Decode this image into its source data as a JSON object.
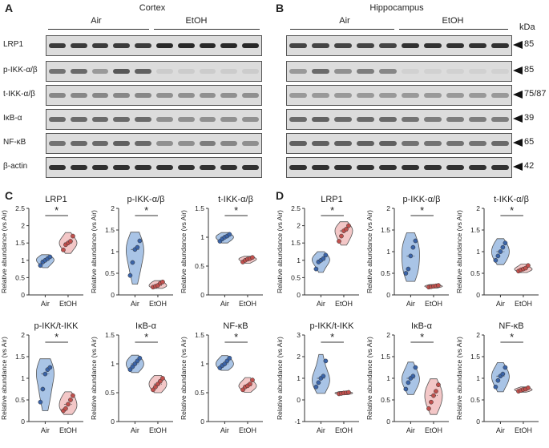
{
  "panels": {
    "A": {
      "letter": "A",
      "title": "Cortex",
      "groups": [
        "Air",
        "EtOH"
      ]
    },
    "B": {
      "letter": "B",
      "title": "Hippocampus",
      "groups": [
        "Air",
        "EtOH"
      ],
      "unit": "kDa"
    },
    "C": {
      "letter": "C"
    },
    "D": {
      "letter": "D"
    }
  },
  "blot_rows": [
    {
      "label": "LRP1",
      "kda": "85"
    },
    {
      "label": "p-IKK-α/β",
      "kda": "85"
    },
    {
      "label": "t-IKK-α/β",
      "kda": "75/87"
    },
    {
      "label": "IκB-α",
      "kda": "39"
    },
    {
      "label": "NF-κB",
      "kda": "65"
    },
    {
      "label": "β-actin",
      "kda": "42"
    }
  ],
  "band_intensity": {
    "cortex": [
      [
        0.85,
        0.85,
        0.85,
        0.85,
        0.85,
        0.95,
        0.95,
        0.95,
        0.95,
        0.95
      ],
      [
        0.55,
        0.6,
        0.35,
        0.7,
        0.65,
        0.08,
        0.08,
        0.08,
        0.08,
        0.08
      ],
      [
        0.45,
        0.45,
        0.45,
        0.45,
        0.45,
        0.4,
        0.4,
        0.4,
        0.4,
        0.4
      ],
      [
        0.6,
        0.6,
        0.6,
        0.6,
        0.6,
        0.4,
        0.4,
        0.4,
        0.4,
        0.4
      ],
      [
        0.55,
        0.6,
        0.6,
        0.65,
        0.6,
        0.4,
        0.4,
        0.5,
        0.45,
        0.4
      ],
      [
        0.9,
        0.9,
        0.9,
        0.9,
        0.9,
        0.9,
        0.9,
        0.9,
        0.9,
        0.9
      ]
    ],
    "hippocampus": [
      [
        0.8,
        0.8,
        0.8,
        0.8,
        0.8,
        0.9,
        0.9,
        0.9,
        0.9,
        0.9
      ],
      [
        0.35,
        0.6,
        0.4,
        0.5,
        0.45,
        0.06,
        0.06,
        0.06,
        0.06,
        0.06
      ],
      [
        0.35,
        0.35,
        0.35,
        0.35,
        0.35,
        0.35,
        0.35,
        0.35,
        0.35,
        0.35
      ],
      [
        0.6,
        0.65,
        0.6,
        0.6,
        0.6,
        0.55,
        0.5,
        0.5,
        0.5,
        0.5
      ],
      [
        0.65,
        0.65,
        0.65,
        0.65,
        0.65,
        0.55,
        0.55,
        0.55,
        0.55,
        0.6
      ],
      [
        0.9,
        0.9,
        0.9,
        0.9,
        0.9,
        0.9,
        0.9,
        0.9,
        0.9,
        0.9
      ]
    ]
  },
  "colors": {
    "air": "#a9c4e6",
    "air_point": "#3b64a8",
    "etoh": "#f3c7c7",
    "etoh_point": "#c0504d"
  },
  "ylabel": "Relative abundance (vs Air)",
  "sig": "*",
  "chart_data": [
    {
      "panel": "C",
      "type": "scatter",
      "title": "LRP1",
      "categories": [
        "Air",
        "EtOH"
      ],
      "ylim": [
        0,
        2.5
      ],
      "yticks": [
        0,
        0.5,
        1.0,
        1.5,
        2.0,
        2.5
      ],
      "ylabel": "Relative abundance (vs Air)",
      "series": [
        {
          "name": "Air",
          "values": [
            0.85,
            0.95,
            1.0,
            1.05,
            1.1
          ]
        },
        {
          "name": "EtOH",
          "values": [
            1.3,
            1.45,
            1.5,
            1.55,
            1.7
          ]
        }
      ]
    },
    {
      "panel": "C",
      "type": "scatter",
      "title": "p-IKK-α/β",
      "categories": [
        "Air",
        "EtOH"
      ],
      "ylim": [
        0,
        2.0
      ],
      "yticks": [
        0,
        0.5,
        1.0,
        1.5,
        2.0
      ],
      "ylabel": "Relative abundance (vs Air)",
      "series": [
        {
          "name": "Air",
          "values": [
            0.45,
            0.75,
            1.05,
            1.1,
            1.25
          ]
        },
        {
          "name": "EtOH",
          "values": [
            0.18,
            0.2,
            0.22,
            0.27,
            0.3
          ]
        }
      ]
    },
    {
      "panel": "C",
      "type": "scatter",
      "title": "t-IKK-α/β",
      "categories": [
        "Air",
        "EtOH"
      ],
      "ylim": [
        0,
        1.5
      ],
      "yticks": [
        0,
        0.5,
        1.0,
        1.5
      ],
      "ylabel": "Relative abundance (vs Air)",
      "series": [
        {
          "name": "Air",
          "values": [
            0.93,
            0.97,
            1.0,
            1.02,
            1.05
          ]
        },
        {
          "name": "EtOH",
          "values": [
            0.57,
            0.6,
            0.62,
            0.63,
            0.65
          ]
        }
      ]
    },
    {
      "panel": "C",
      "type": "scatter",
      "title": "p-IKK/t-IKK",
      "categories": [
        "Air",
        "EtOH"
      ],
      "ylim": [
        0,
        2.0
      ],
      "yticks": [
        0,
        0.5,
        1.0,
        1.5,
        2.0
      ],
      "ylabel": "Relative abundance (vs Air)",
      "series": [
        {
          "name": "Air",
          "values": [
            0.45,
            0.75,
            1.1,
            1.2,
            1.25
          ]
        },
        {
          "name": "EtOH",
          "values": [
            0.25,
            0.3,
            0.4,
            0.5,
            0.6
          ]
        }
      ]
    },
    {
      "panel": "C",
      "type": "scatter",
      "title": "IκB-α",
      "categories": [
        "Air",
        "EtOH"
      ],
      "ylim": [
        0,
        1.5
      ],
      "yticks": [
        0,
        0.5,
        1.0,
        1.5
      ],
      "ylabel": "Relative abundance (vs Air)",
      "series": [
        {
          "name": "Air",
          "values": [
            0.9,
            0.95,
            1.0,
            1.05,
            1.1
          ]
        },
        {
          "name": "EtOH",
          "values": [
            0.55,
            0.6,
            0.65,
            0.7,
            0.75
          ]
        }
      ]
    },
    {
      "panel": "C",
      "type": "scatter",
      "title": "NF-κB",
      "categories": [
        "Air",
        "EtOH"
      ],
      "ylim": [
        0,
        1.5
      ],
      "yticks": [
        0,
        0.5,
        1.0,
        1.5
      ],
      "ylabel": "Relative abundance (vs Air)",
      "series": [
        {
          "name": "Air",
          "values": [
            0.93,
            0.97,
            1.0,
            1.05,
            1.1
          ]
        },
        {
          "name": "EtOH",
          "values": [
            0.55,
            0.6,
            0.62,
            0.65,
            0.72
          ]
        }
      ]
    },
    {
      "panel": "D",
      "type": "scatter",
      "title": "LRP1",
      "categories": [
        "Air",
        "EtOH"
      ],
      "ylim": [
        0,
        2.5
      ],
      "yticks": [
        0,
        0.5,
        1.0,
        1.5,
        2.0,
        2.5
      ],
      "ylabel": "Relative abundance (vs Air)",
      "series": [
        {
          "name": "Air",
          "values": [
            0.75,
            0.95,
            1.0,
            1.05,
            1.15
          ]
        },
        {
          "name": "EtOH",
          "values": [
            1.55,
            1.7,
            1.85,
            1.9,
            2.0
          ]
        }
      ]
    },
    {
      "panel": "D",
      "type": "scatter",
      "title": "p-IKK-α/β",
      "categories": [
        "Air",
        "EtOH"
      ],
      "ylim": [
        0,
        2.0
      ],
      "yticks": [
        0,
        0.5,
        1.0,
        1.5,
        2.0
      ],
      "ylabel": "Relative abundance (vs Air)",
      "series": [
        {
          "name": "Air",
          "values": [
            0.5,
            0.6,
            0.9,
            1.1,
            1.25
          ]
        },
        {
          "name": "EtOH",
          "values": [
            0.18,
            0.19,
            0.2,
            0.21,
            0.22
          ]
        }
      ]
    },
    {
      "panel": "D",
      "type": "scatter",
      "title": "t-IKK-α/β",
      "categories": [
        "Air",
        "EtOH"
      ],
      "ylim": [
        0,
        2.0
      ],
      "yticks": [
        0,
        0.5,
        1.0,
        1.5,
        2.0
      ],
      "ylabel": "Relative abundance (vs Air)",
      "series": [
        {
          "name": "Air",
          "values": [
            0.8,
            0.9,
            1.0,
            1.1,
            1.2
          ]
        },
        {
          "name": "EtOH",
          "values": [
            0.55,
            0.58,
            0.6,
            0.62,
            0.68
          ]
        }
      ]
    },
    {
      "panel": "D",
      "type": "scatter",
      "title": "p-IKK/t-IKK",
      "categories": [
        "Air",
        "EtOH"
      ],
      "ylim": [
        -1,
        3
      ],
      "yticks": [
        -1,
        0,
        1,
        2,
        3
      ],
      "ylabel": "Relative abundance (vs Air)",
      "series": [
        {
          "name": "Air",
          "values": [
            0.6,
            0.8,
            1.0,
            1.1,
            1.8
          ]
        },
        {
          "name": "EtOH",
          "values": [
            0.28,
            0.3,
            0.32,
            0.33,
            0.35
          ]
        }
      ]
    },
    {
      "panel": "D",
      "type": "scatter",
      "title": "IκB-α",
      "categories": [
        "Air",
        "EtOH"
      ],
      "ylim": [
        0,
        2.0
      ],
      "yticks": [
        0,
        0.5,
        1.0,
        1.5,
        2.0
      ],
      "ylabel": "Relative abundance (vs Air)",
      "series": [
        {
          "name": "Air",
          "values": [
            0.75,
            0.9,
            1.0,
            1.05,
            1.25
          ]
        },
        {
          "name": "EtOH",
          "values": [
            0.3,
            0.45,
            0.6,
            0.7,
            0.85
          ]
        }
      ]
    },
    {
      "panel": "D",
      "type": "scatter",
      "title": "NF-κB",
      "categories": [
        "Air",
        "EtOH"
      ],
      "ylim": [
        0,
        2.0
      ],
      "yticks": [
        0,
        0.5,
        1.0,
        1.5,
        2.0
      ],
      "ylabel": "Relative abundance (vs Air)",
      "series": [
        {
          "name": "Air",
          "values": [
            0.8,
            0.95,
            1.05,
            1.1,
            1.25
          ]
        },
        {
          "name": "EtOH",
          "values": [
            0.7,
            0.72,
            0.74,
            0.75,
            0.78
          ]
        }
      ]
    }
  ]
}
